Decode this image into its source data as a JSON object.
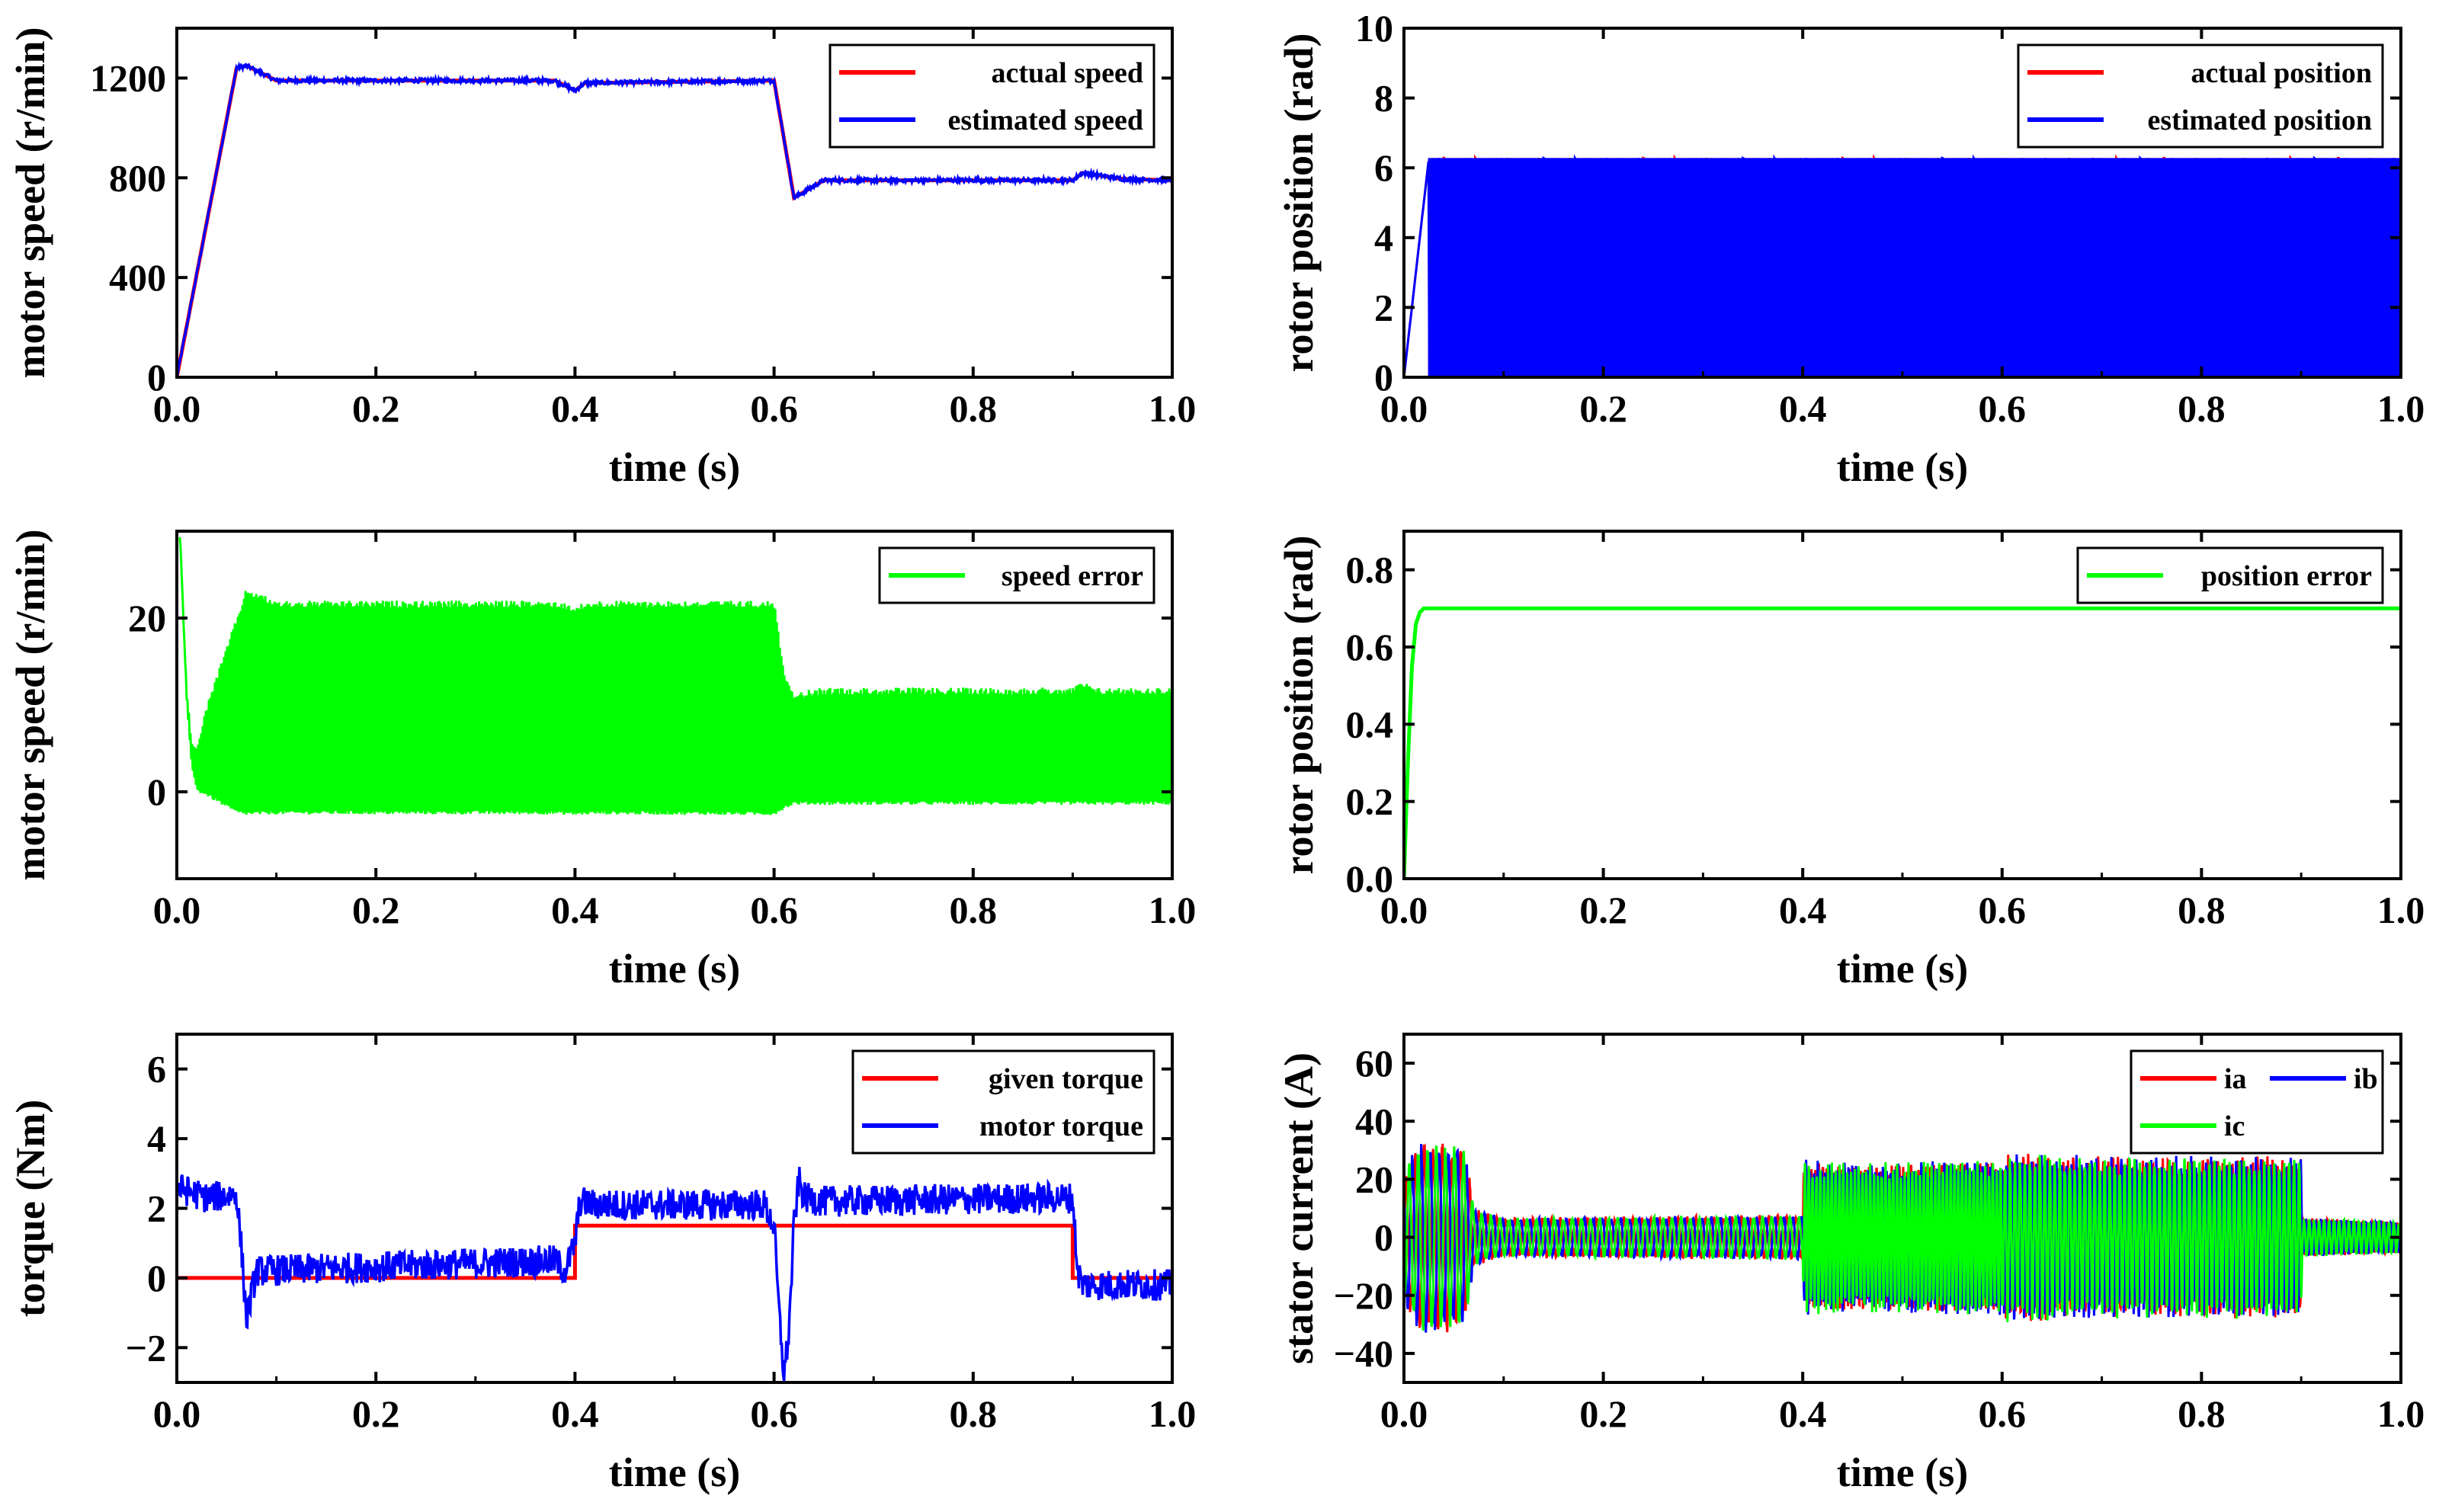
{
  "chart_data": [
    {
      "id": "speed",
      "type": "line",
      "xlabel": "time (s)",
      "ylabel": "motor speed (r/min)",
      "xlim": [
        0,
        1
      ],
      "ylim": [
        0,
        1400
      ],
      "xticks": [
        "0.0",
        "0.2",
        "0.4",
        "0.6",
        "0.8",
        "1.0"
      ],
      "yticks": [
        {
          "v": 0,
          "label": "0"
        },
        {
          "v": 400,
          "label": "400"
        },
        {
          "v": 800,
          "label": "800"
        },
        {
          "v": 1200,
          "label": "1200"
        }
      ],
      "legend_position": "top-right",
      "series": [
        {
          "name": "actual speed",
          "color": "#ff0000",
          "noise": 0,
          "x": [
            0,
            0.06,
            0.07,
            0.1,
            0.38,
            0.4,
            0.41,
            0.6,
            0.62,
            0.65,
            0.9,
            0.91,
            0.95,
            1.0
          ],
          "y": [
            0,
            1240,
            1250,
            1190,
            1190,
            1150,
            1180,
            1190,
            720,
            790,
            790,
            820,
            795,
            790
          ]
        },
        {
          "name": "estimated speed",
          "color": "#0000ff",
          "noise": 8,
          "x": [
            0,
            0.06,
            0.07,
            0.1,
            0.38,
            0.4,
            0.41,
            0.6,
            0.62,
            0.65,
            0.9,
            0.91,
            0.95,
            1.0
          ],
          "y": [
            0,
            1240,
            1250,
            1190,
            1190,
            1150,
            1180,
            1190,
            720,
            790,
            790,
            820,
            795,
            790
          ]
        }
      ]
    },
    {
      "id": "position",
      "type": "line",
      "xlabel": "time (s)",
      "ylabel": "rotor position (rad)",
      "xlim": [
        0,
        1
      ],
      "ylim": [
        0,
        10
      ],
      "xticks": [
        "0.0",
        "0.2",
        "0.4",
        "0.6",
        "0.8",
        "1.0"
      ],
      "yticks": [
        {
          "v": 0,
          "label": "0"
        },
        {
          "v": 2,
          "label": "2"
        },
        {
          "v": 4,
          "label": "4"
        },
        {
          "v": 6,
          "label": "6"
        },
        {
          "v": 8,
          "label": "8"
        },
        {
          "v": 10,
          "label": "10"
        }
      ],
      "legend_position": "top-right",
      "series": [
        {
          "name": "actual position",
          "color": "#ff0000",
          "kind": "sawtooth",
          "max": 6.28
        },
        {
          "name": "estimated position",
          "color": "#0000ff",
          "kind": "sawtooth",
          "max": 6.28
        }
      ]
    },
    {
      "id": "speed_error",
      "type": "line",
      "xlabel": "time (s)",
      "ylabel": "motor speed (r/min)",
      "xlim": [
        0,
        1
      ],
      "ylim": [
        -10,
        30
      ],
      "xticks": [
        "0.0",
        "0.2",
        "0.4",
        "0.6",
        "0.8",
        "1.0"
      ],
      "yticks": [
        {
          "v": 0,
          "label": "0"
        },
        {
          "v": 20,
          "label": "20"
        }
      ],
      "legend_position": "top-right",
      "series": [
        {
          "name": "speed error",
          "color": "#00ff00",
          "kind": "band",
          "x": [
            0.003,
            0.01,
            0.015,
            0.02,
            0.03,
            0.045,
            0.06,
            0.07,
            0.1,
            0.38,
            0.4,
            0.42,
            0.6,
            0.61,
            0.62,
            0.65,
            0.9,
            0.91,
            0.92,
            1.0
          ],
          "lo": [
            30,
            10,
            3,
            0,
            -0.5,
            -1.5,
            -2.5,
            -2.7,
            -2.6,
            -2.6,
            -2.7,
            -2.6,
            -2.7,
            -2.0,
            -1.5,
            -1.5,
            -1.5,
            -1.5,
            -1.5,
            -1.5
          ],
          "hi": [
            30,
            12,
            6,
            5,
            10,
            15,
            20,
            23.5,
            22,
            22,
            21.5,
            22,
            22,
            14,
            11.5,
            12,
            12,
            12.8,
            12,
            12
          ]
        }
      ]
    },
    {
      "id": "position_error",
      "type": "line",
      "xlabel": "time (s)",
      "ylabel": "rotor position (rad)",
      "xlim": [
        0,
        1
      ],
      "ylim": [
        0,
        0.9
      ],
      "xticks": [
        "0.0",
        "0.2",
        "0.4",
        "0.6",
        "0.8",
        "1.0"
      ],
      "yticks": [
        {
          "v": 0,
          "label": "0.0"
        },
        {
          "v": 0.2,
          "label": "0.2"
        },
        {
          "v": 0.4,
          "label": "0.4"
        },
        {
          "v": 0.6,
          "label": "0.6"
        },
        {
          "v": 0.8,
          "label": "0.8"
        }
      ],
      "legend_position": "top-right",
      "series": [
        {
          "name": "position error",
          "color": "#00ff00",
          "noise": 0,
          "x": [
            0,
            0.004,
            0.008,
            0.012,
            0.016,
            0.02,
            0.03,
            1.0
          ],
          "y": [
            0,
            0.3,
            0.55,
            0.66,
            0.69,
            0.7,
            0.7,
            0.7
          ]
        }
      ]
    },
    {
      "id": "torque",
      "type": "line",
      "xlabel": "time (s)",
      "ylabel": "torque (Nm)",
      "xlim": [
        0,
        1
      ],
      "ylim": [
        -3,
        7
      ],
      "xticks": [
        "0.0",
        "0.2",
        "0.4",
        "0.6",
        "0.8",
        "1.0"
      ],
      "yticks": [
        {
          "v": -2,
          "label": "−2"
        },
        {
          "v": 0,
          "label": "0"
        },
        {
          "v": 2,
          "label": "2"
        },
        {
          "v": 4,
          "label": "4"
        },
        {
          "v": 6,
          "label": "6"
        }
      ],
      "legend_position": "top-right",
      "series": [
        {
          "name": "given torque",
          "color": "#ff0000",
          "noise": 0,
          "x": [
            0,
            0.065,
            0.065,
            0.4,
            0.4,
            0.9,
            0.9,
            1.0
          ],
          "y": [
            0,
            0,
            0,
            0,
            1.5,
            1.5,
            0,
            0
          ]
        },
        {
          "name": "motor torque",
          "color": "#0000ff",
          "noise": 0.45,
          "x": [
            0,
            0.03,
            0.06,
            0.065,
            0.07,
            0.08,
            0.38,
            0.39,
            0.4,
            0.405,
            0.42,
            0.59,
            0.6,
            0.605,
            0.61,
            0.615,
            0.62,
            0.625,
            0.63,
            0.65,
            0.89,
            0.9,
            0.905,
            0.91,
            1.0
          ],
          "y": [
            2.6,
            2.3,
            2.4,
            0.8,
            -1.2,
            0.2,
            0.5,
            0.2,
            1.0,
            2.2,
            2.1,
            2.1,
            1.5,
            -1.0,
            -2.8,
            -1.5,
            1.5,
            2.8,
            2.3,
            2.2,
            2.3,
            2.3,
            0.2,
            -0.2,
            -0.2
          ]
        }
      ]
    },
    {
      "id": "current",
      "type": "line",
      "xlabel": "time (s)",
      "ylabel": "stator current (A)",
      "xlim": [
        0,
        1
      ],
      "ylim": [
        -50,
        70
      ],
      "xticks": [
        "0.0",
        "0.2",
        "0.4",
        "0.6",
        "0.8",
        "1.0"
      ],
      "yticks": [
        {
          "v": -40,
          "label": "−40"
        },
        {
          "v": -20,
          "label": "−20"
        },
        {
          "v": 0,
          "label": "0"
        },
        {
          "v": 20,
          "label": "20"
        },
        {
          "v": 40,
          "label": "40"
        },
        {
          "v": 60,
          "label": "60"
        }
      ],
      "legend_position": "top-right",
      "series": [
        {
          "name": "ia",
          "color": "#ff0000",
          "kind": "osc",
          "phase": 0
        },
        {
          "name": "ib",
          "color": "#0000ff",
          "kind": "osc",
          "phase": 2.094
        },
        {
          "name": "ic",
          "color": "#00ff00",
          "kind": "osc",
          "phase": 4.189
        }
      ],
      "envelope": {
        "x": [
          0,
          0.005,
          0.02,
          0.04,
          0.06,
          0.065,
          0.07,
          0.1,
          0.4,
          0.401,
          0.45,
          0.6,
          0.605,
          0.62,
          0.7,
          0.9,
          0.901,
          1.0
        ],
        "amp": [
          15,
          25,
          30,
          30,
          28,
          20,
          9,
          6,
          7,
          24,
          23,
          24,
          26,
          26,
          25,
          25,
          6,
          5
        ]
      }
    }
  ]
}
